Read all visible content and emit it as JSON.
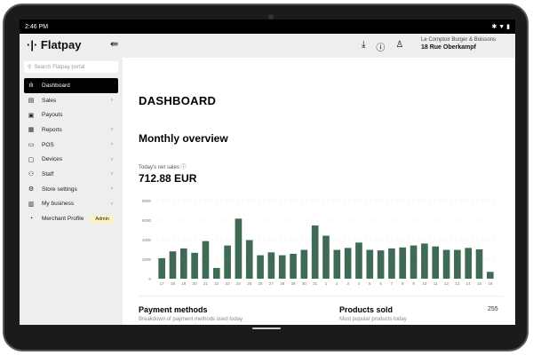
{
  "status_bar": {
    "time": "2:46 PM"
  },
  "header": {
    "logo": "Flatpay",
    "store_name": "Le Comptoir Burger & Boissons",
    "store_address": "18 Rue Oberkampf"
  },
  "sidebar": {
    "search_placeholder": "Search Flatpay portal",
    "items": [
      {
        "label": "Dashboard",
        "icon": "bar-chart-icon",
        "glyph": "ılı",
        "chevron": false,
        "active": true
      },
      {
        "label": "Sales",
        "icon": "receipt-icon",
        "glyph": "▤",
        "chevron": true
      },
      {
        "label": "Payouts",
        "icon": "cash-icon",
        "glyph": "▣",
        "chevron": false
      },
      {
        "label": "Reports",
        "icon": "report-icon",
        "glyph": "▦",
        "chevron": true
      },
      {
        "label": "POS",
        "icon": "monitor-icon",
        "glyph": "▭",
        "chevron": true
      },
      {
        "label": "Devices",
        "icon": "devices-icon",
        "glyph": "▢",
        "chevron": true
      },
      {
        "label": "Staff",
        "icon": "people-icon",
        "glyph": "⚇",
        "chevron": true
      },
      {
        "label": "Store settings",
        "icon": "gear-icon",
        "glyph": "⚙",
        "chevron": true
      },
      {
        "label": "My business",
        "icon": "store-icon",
        "glyph": "▥",
        "chevron": true
      },
      {
        "label": "Merchant Profile",
        "icon": "profile-icon",
        "glyph": "◔",
        "chevron": false,
        "badge": "Admin"
      }
    ]
  },
  "main": {
    "title": "DASHBOARD",
    "overview": "Monthly overview",
    "net_sales_label": "Today's net sales ⓘ",
    "net_sales_value": "712.88 EUR",
    "payment_methods": "Payment methods",
    "payment_methods_sub": "Breakdown of payment methods used today",
    "products_sold": "Products sold",
    "products_sold_sub": "Most popular products today",
    "products_sold_count": "255"
  },
  "colors": {
    "bar": "#3f6b55"
  },
  "chart_data": {
    "type": "bar",
    "ylim": [
      0,
      8000
    ],
    "yticks": [
      "0",
      "2000",
      "4000",
      "6000",
      "8000"
    ],
    "categories": [
      "17",
      "18",
      "19",
      "20",
      "21",
      "22",
      "23",
      "24",
      "25",
      "26",
      "27",
      "28",
      "29",
      "30",
      "31",
      "1",
      "2",
      "3",
      "4",
      "5",
      "6",
      "7",
      "8",
      "9",
      "10",
      "11",
      "12",
      "13",
      "14",
      "15",
      "16"
    ],
    "values": [
      2100,
      2800,
      3100,
      2650,
      3850,
      1100,
      3400,
      6150,
      3950,
      2400,
      2700,
      2400,
      2550,
      2950,
      5450,
      4400,
      2950,
      3150,
      3700,
      2950,
      2900,
      3100,
      3200,
      3400,
      3600,
      3300,
      2950,
      2950,
      3150,
      3000,
      700
    ]
  }
}
